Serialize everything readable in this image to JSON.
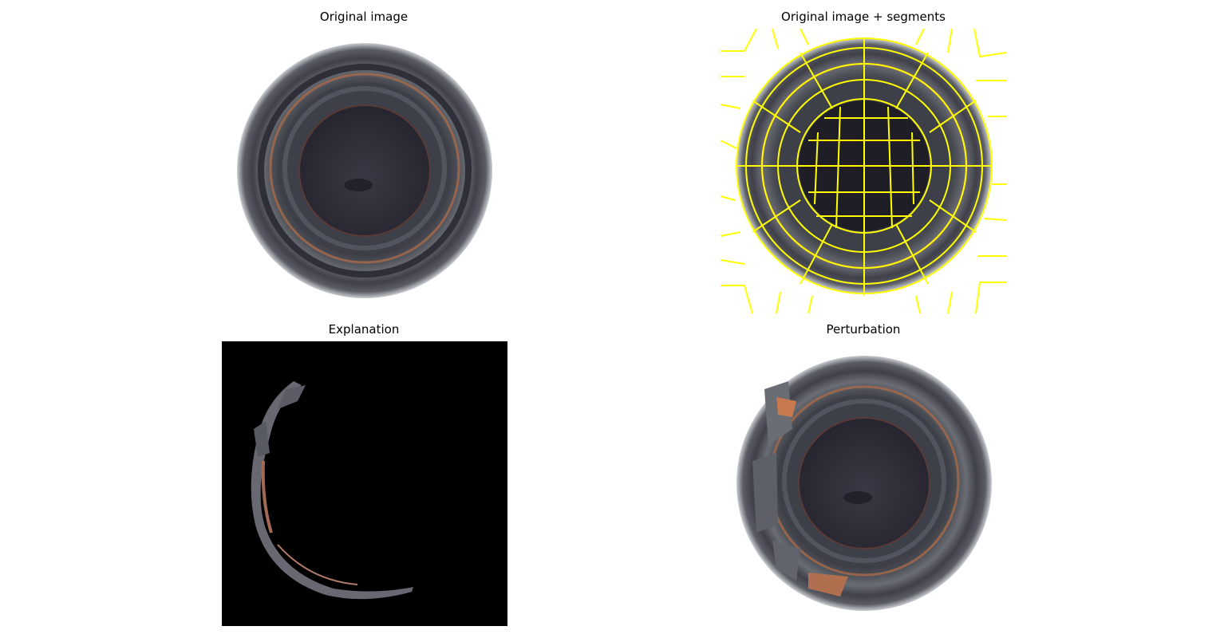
{
  "figure": {
    "panels": [
      {
        "id": "original",
        "title": "Original image"
      },
      {
        "id": "segments",
        "title": "Original image + segments"
      },
      {
        "id": "explanation",
        "title": "Explanation"
      },
      {
        "id": "perturbation",
        "title": "Perturbation"
      }
    ],
    "colors": {
      "background": "#ffffff",
      "segment_boundary": "#ffff00",
      "mask": "#000000",
      "bottle_dark": "#2a2833",
      "bottle_rim": "#5a5a66",
      "copper": "#b0704a"
    }
  }
}
